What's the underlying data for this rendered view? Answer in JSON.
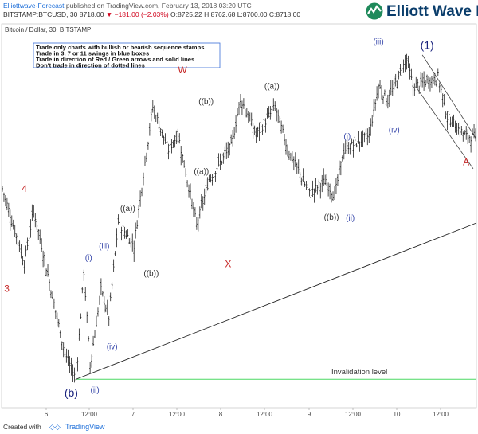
{
  "header": {
    "author": "Elliottwave-Forecast",
    "published_text": "published on TradingView.com, February 13, 2018 03:20 UTC",
    "symbol": "BITSTAMP:BTCUSD, 30",
    "last": "8718.00",
    "change": "▼ −181.00 (−2.03%)",
    "ohlc": "O:8725.22 H:8762.68 L:8700.00 C:8718.00"
  },
  "logo": {
    "text": "Elliott Wave Fo"
  },
  "footer": {
    "created_with": "Created with",
    "brand": "TradingView"
  },
  "chart_data": {
    "type": "ohlc_bar",
    "title": "Bitcoin / Dollar, 30, BITSTAMP",
    "notes": [
      "Trade only charts with bullish or bearish sequence stamps",
      "Trade in 3, 7 or 11 swings in blue boxes",
      "Trade in direction of Red / Green arrows and solid lines",
      "Don't trade in direction of dotted lines"
    ],
    "x_tick_labels": [
      "6",
      "12:00",
      "7",
      "12:00",
      "8",
      "12:00",
      "9",
      "12:00",
      "10",
      "12:00"
    ],
    "waypoints": [
      {
        "i": 0,
        "p": 9220
      },
      {
        "i": 14,
        "p": 8620
      },
      {
        "i": 20,
        "p": 9050
      },
      {
        "i": 40,
        "p": 7880
      },
      {
        "i": 47,
        "p": 7680
      },
      {
        "i": 52,
        "p": 8550
      },
      {
        "i": 56,
        "p": 7790
      },
      {
        "i": 63,
        "p": 8400
      },
      {
        "i": 68,
        "p": 8180
      },
      {
        "i": 74,
        "p": 8950
      },
      {
        "i": 84,
        "p": 8760
      },
      {
        "i": 90,
        "p": 9340
      },
      {
        "i": 96,
        "p": 9880
      },
      {
        "i": 106,
        "p": 9530
      },
      {
        "i": 112,
        "p": 9660
      },
      {
        "i": 124,
        "p": 8920
      },
      {
        "i": 132,
        "p": 9300
      },
      {
        "i": 146,
        "p": 9560
      },
      {
        "i": 152,
        "p": 9950
      },
      {
        "i": 162,
        "p": 9650
      },
      {
        "i": 174,
        "p": 9880
      },
      {
        "i": 182,
        "p": 9540
      },
      {
        "i": 196,
        "p": 9180
      },
      {
        "i": 206,
        "p": 9280
      },
      {
        "i": 212,
        "p": 9160
      },
      {
        "i": 218,
        "p": 9530
      },
      {
        "i": 234,
        "p": 9650
      },
      {
        "i": 240,
        "p": 10050
      },
      {
        "i": 246,
        "p": 9930
      },
      {
        "i": 258,
        "p": 10270
      },
      {
        "i": 262,
        "p": 10040
      },
      {
        "i": 278,
        "p": 10120
      },
      {
        "i": 284,
        "p": 9800
      },
      {
        "i": 296,
        "p": 9640
      }
    ],
    "wave_labels": [
      {
        "text": "4",
        "i": 14,
        "p": 9050,
        "color": "#c62828"
      },
      {
        "text": "3",
        "i": 13,
        "p": 8630,
        "color": "#c62828"
      },
      {
        "text": "(b)",
        "i": 47,
        "p": 7680,
        "color": "#1a237e"
      },
      {
        "text": "(i)",
        "i": 53,
        "p": 8550,
        "color": "#3949ab"
      },
      {
        "text": "(ii)",
        "i": 57,
        "p": 7790,
        "color": "#3949ab"
      },
      {
        "text": "(iii)",
        "i": 67,
        "p": 8400,
        "color": "#3949ab"
      },
      {
        "text": "(iv)",
        "i": 70,
        "p": 8180,
        "color": "#3949ab"
      },
      {
        "text": "((a))",
        "i": 80,
        "p": 8950,
        "color": "#333333"
      },
      {
        "text": "((b))",
        "i": 95,
        "p": 8760,
        "color": "#333333"
      },
      {
        "text": "W",
        "i": 118,
        "p": 9880,
        "color": "#c62828"
      },
      {
        "text": "((a))",
        "i": 127,
        "p": 9530,
        "color": "#333333"
      },
      {
        "text": "((b))",
        "i": 130,
        "p": 9660,
        "color": "#333333"
      },
      {
        "text": "X",
        "i": 140,
        "p": 8920,
        "color": "#c62828"
      },
      {
        "text": "((a))",
        "i": 172,
        "p": 9950,
        "color": "#333333"
      },
      {
        "text": "((b))",
        "i": 210,
        "p": 9160,
        "color": "#333333"
      },
      {
        "text": "(i)",
        "i": 218,
        "p": 9530,
        "color": "#3949ab"
      },
      {
        "text": "(ii)",
        "i": 220,
        "p": 9180,
        "color": "#3949ab"
      },
      {
        "text": "(iii)",
        "i": 242,
        "p": 10050,
        "color": "#3949ab"
      },
      {
        "text": "(iv)",
        "i": 250,
        "p": 9930,
        "color": "#3949ab"
      },
      {
        "text": "(1)",
        "i": 268,
        "p": 10270,
        "color": "#1a237e"
      },
      {
        "text": "A",
        "i": 300,
        "p": 9640,
        "color": "#c62828"
      }
    ],
    "invalidation": {
      "label": "Invalidation level",
      "p": 7680,
      "color": "#4cd964"
    },
    "colors": {
      "bar": "#222222",
      "channel": "#444444",
      "trendline": "#222222",
      "frame": "#bbbbbb"
    }
  }
}
